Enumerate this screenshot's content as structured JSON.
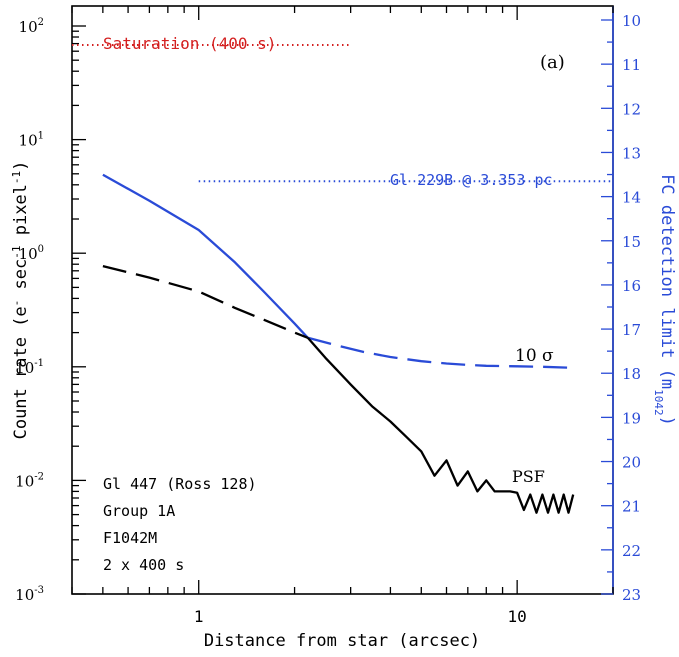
{
  "chart_data": {
    "type": "line",
    "panel_label": "(a)",
    "xlabel": "Distance from star (arcsec)",
    "ylabel_left": {
      "base": "Count rate (e",
      "sup1": "-",
      "mid1": " sec",
      "sup2": "-1",
      "mid2": " pixel",
      "sup3": "-1",
      "end": ")"
    },
    "ylabel_right": {
      "base": "FC detection limit (m",
      "sub": "1042",
      "end": ")"
    },
    "x_scale": "log",
    "xlim": [
      0.4,
      20
    ],
    "y_scale": "log",
    "ylim": [
      0.001,
      150
    ],
    "right_axis_ylim": [
      23,
      10
    ],
    "x_ticks": [
      {
        "value": 1,
        "label": "1"
      },
      {
        "value": 10,
        "label": "10"
      }
    ],
    "y_ticks": [
      {
        "value": 100,
        "base": "10",
        "exp": "2"
      },
      {
        "value": 10,
        "base": "10",
        "exp": "1"
      },
      {
        "value": 1,
        "base": "10",
        "exp": "0"
      },
      {
        "value": 0.1,
        "base": "10",
        "exp": "-1"
      },
      {
        "value": 0.01,
        "base": "10",
        "exp": "-2"
      },
      {
        "value": 0.001,
        "base": "10",
        "exp": "-3"
      }
    ],
    "right_ticks": [
      "10",
      "11",
      "12",
      "13",
      "14",
      "15",
      "16",
      "17",
      "18",
      "19",
      "20",
      "21",
      "22",
      "23"
    ],
    "colors": {
      "accent": "#2a4bd7",
      "saturation": "#d42020",
      "psf": "#000000",
      "axis": "#000000"
    },
    "series": [
      {
        "name": "Saturation (400 s)",
        "style": "dotted",
        "color": "#d42020",
        "x": [
          0.4,
          3.0
        ],
        "y": [
          68,
          68
        ]
      },
      {
        "name": "Gl 229B @ 3.353 pc",
        "style": "dotted",
        "color": "#2a4bd7",
        "x": [
          1.0,
          20
        ],
        "y": [
          4.3,
          4.3
        ]
      },
      {
        "name": "FC detection limit",
        "style": "solid",
        "color": "#2a4bd7",
        "x": [
          0.5,
          0.7,
          1.0,
          1.3,
          1.6,
          2.0,
          2.2
        ],
        "y": [
          4.9,
          2.9,
          1.6,
          0.83,
          0.46,
          0.24,
          0.18
        ]
      },
      {
        "name": "10 σ",
        "style": "dashed",
        "color": "#000000",
        "x": [
          0.5,
          0.7,
          1.0,
          1.3,
          1.6,
          2.0,
          2.2
        ],
        "y": [
          0.77,
          0.61,
          0.46,
          0.33,
          0.26,
          0.2,
          0.18
        ]
      },
      {
        "name": "10 σ",
        "style": "dashed",
        "color": "#2a4bd7",
        "x": [
          2.2,
          2.7,
          3.3,
          4.0,
          5.0,
          6.0,
          7.0,
          8.0,
          10.0,
          12.0,
          15.0
        ],
        "y": [
          0.18,
          0.155,
          0.135,
          0.122,
          0.112,
          0.107,
          0.104,
          0.102,
          0.101,
          0.1,
          0.098
        ]
      },
      {
        "name": "PSF",
        "style": "solid",
        "color": "#000000",
        "x": [
          2.2,
          2.5,
          3.0,
          3.5,
          4.0,
          4.5,
          5.0,
          5.5,
          6.0,
          6.5,
          7.0,
          7.5,
          8.0,
          8.5,
          9.0,
          9.5,
          10.0,
          10.5,
          11.0,
          11.5,
          12.0,
          12.5,
          13.0,
          13.5,
          14.0,
          14.5,
          15.0
        ],
        "y": [
          0.18,
          0.12,
          0.07,
          0.045,
          0.033,
          0.024,
          0.018,
          0.011,
          0.015,
          0.009,
          0.012,
          0.008,
          0.01,
          0.008,
          0.008,
          0.008,
          0.0078,
          0.0055,
          0.0075,
          0.0052,
          0.0075,
          0.0052,
          0.0075,
          0.0052,
          0.0075,
          0.0052,
          0.0075
        ]
      }
    ],
    "annotations": {
      "saturation": "Saturation (400 s)",
      "gl229b": "Gl 229B @ 3.353 pc",
      "ten_sigma": "10 σ",
      "psf": "PSF",
      "target_lines": [
        "Gl 447 (Ross 128)",
        "Group 1A",
        "F1042M",
        "2 x 400 s"
      ]
    }
  }
}
